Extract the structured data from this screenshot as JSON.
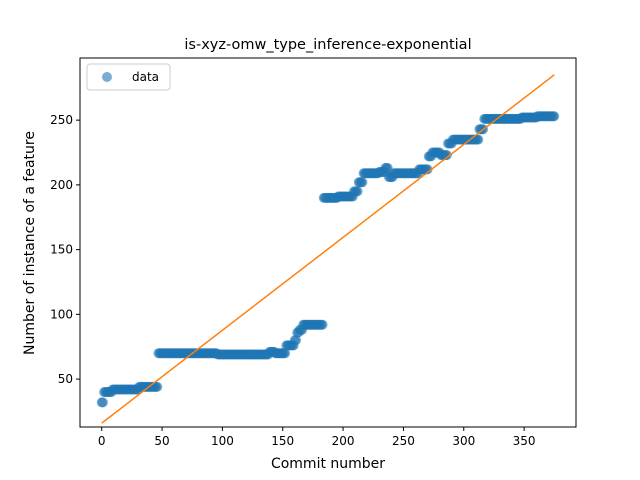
{
  "chart_data": {
    "type": "scatter",
    "title": "is-xyz-omw_type_inference-exponential",
    "xlabel": "Commit number",
    "ylabel": "Number of instance of a feature",
    "xlim": [
      -18,
      393
    ],
    "ylim": [
      13,
      298
    ],
    "xticks": [
      0,
      50,
      100,
      150,
      200,
      250,
      300,
      350
    ],
    "yticks": [
      50,
      100,
      150,
      200,
      250
    ],
    "grid": false,
    "legend": {
      "placement": "top-left",
      "entries": [
        "data"
      ]
    },
    "colors": {
      "points": "#1f77b4",
      "fit_line": "#ff7f0e"
    },
    "series": [
      {
        "name": "data",
        "kind": "scatter",
        "segments": [
          {
            "x_start": 0,
            "x_end": 1,
            "y": 32
          },
          {
            "x_start": 2,
            "x_end": 8,
            "y": 40
          },
          {
            "x_start": 9,
            "x_end": 30,
            "y": 42
          },
          {
            "x_start": 31,
            "x_end": 46,
            "y": 44
          },
          {
            "x_start": 47,
            "x_end": 95,
            "y": 70
          },
          {
            "x_start": 96,
            "x_end": 138,
            "y": 69
          },
          {
            "x_start": 139,
            "x_end": 143,
            "y": 71
          },
          {
            "x_start": 144,
            "x_end": 152,
            "y": 70
          },
          {
            "x_start": 153,
            "x_end": 159,
            "y": 76
          },
          {
            "x_start": 160,
            "x_end": 161,
            "y": 80
          },
          {
            "x_start": 162,
            "x_end": 163,
            "y": 86
          },
          {
            "x_start": 164,
            "x_end": 166,
            "y": 88
          },
          {
            "x_start": 167,
            "x_end": 183,
            "y": 92
          },
          {
            "x_start": 184,
            "x_end": 195,
            "y": 190
          },
          {
            "x_start": 196,
            "x_end": 208,
            "y": 191
          },
          {
            "x_start": 209,
            "x_end": 212,
            "y": 195
          },
          {
            "x_start": 213,
            "x_end": 216,
            "y": 202
          },
          {
            "x_start": 217,
            "x_end": 229,
            "y": 209
          },
          {
            "x_start": 230,
            "x_end": 234,
            "y": 210
          },
          {
            "x_start": 235,
            "x_end": 237,
            "y": 213
          },
          {
            "x_start": 238,
            "x_end": 241,
            "y": 206
          },
          {
            "x_start": 242,
            "x_end": 262,
            "y": 209
          },
          {
            "x_start": 263,
            "x_end": 270,
            "y": 212
          },
          {
            "x_start": 271,
            "x_end": 273,
            "y": 222
          },
          {
            "x_start": 274,
            "x_end": 280,
            "y": 225
          },
          {
            "x_start": 281,
            "x_end": 286,
            "y": 223
          },
          {
            "x_start": 287,
            "x_end": 290,
            "y": 232
          },
          {
            "x_start": 291,
            "x_end": 312,
            "y": 235
          },
          {
            "x_start": 313,
            "x_end": 316,
            "y": 243
          },
          {
            "x_start": 317,
            "x_end": 330,
            "y": 251
          },
          {
            "x_start": 331,
            "x_end": 347,
            "y": 251
          },
          {
            "x_start": 348,
            "x_end": 360,
            "y": 252
          },
          {
            "x_start": 361,
            "x_end": 375,
            "y": 253
          }
        ]
      },
      {
        "kind": "line",
        "x": [
          0,
          375
        ],
        "y": [
          16,
          285
        ]
      }
    ]
  }
}
